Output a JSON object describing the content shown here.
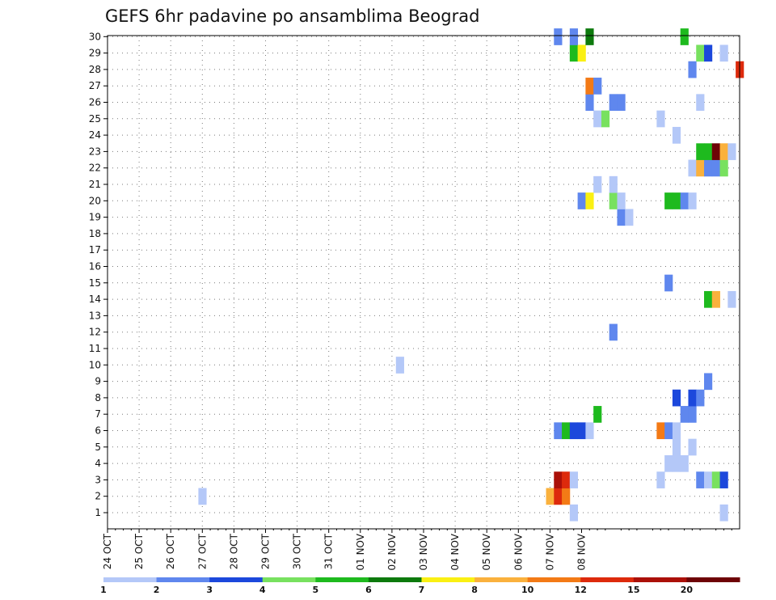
{
  "chart_data": {
    "type": "heatmap",
    "title": "GEFS 6hr padavine po ansamblima Beograd",
    "x_tick_labels": [
      "24 OCT",
      "25 OCT",
      "26 OCT",
      "27 OCT",
      "28 OCT",
      "29 OCT",
      "30 OCT",
      "31 OCT",
      "01 NOV",
      "02 NOV",
      "03 NOV",
      "04 NOV",
      "05 NOV",
      "06 NOV",
      "07 NOV",
      "08 NOV"
    ],
    "y_tick_labels": [
      "1",
      "2",
      "3",
      "4",
      "5",
      "6",
      "7",
      "8",
      "9",
      "10",
      "11",
      "12",
      "13",
      "14",
      "15",
      "16",
      "17",
      "18",
      "19",
      "20",
      "21",
      "22",
      "23",
      "24",
      "25",
      "26",
      "27",
      "28",
      "29",
      "30"
    ],
    "x_axis": "time, 6-hour steps from 24 OCT 00Z (4 steps per day)",
    "y_axis": "ensemble member",
    "ylim": [
      1,
      30
    ],
    "grid": "dotted",
    "legend": {
      "placement": "bottom",
      "boundaries": [
        "1",
        "2",
        "3",
        "4",
        "5",
        "6",
        "7",
        "8",
        "10",
        "12",
        "15",
        "20"
      ],
      "colors": [
        "#b4c8f8",
        "#5f87ee",
        "#1c48dc",
        "#78e15f",
        "#1eba1e",
        "#0d7a0d",
        "#faf013",
        "#fab13d",
        "#f37a16",
        "#dd2a0c",
        "#ab1008",
        "#6e0306"
      ]
    },
    "cells": [
      {
        "member": 1,
        "step": 59,
        "class": 0
      },
      {
        "member": 1,
        "step": 78,
        "class": 0
      },
      {
        "member": 2,
        "step": 12,
        "class": 0
      },
      {
        "member": 2,
        "step": 56,
        "class": 7
      },
      {
        "member": 2,
        "step": 57,
        "class": 9
      },
      {
        "member": 2,
        "step": 58,
        "class": 8
      },
      {
        "member": 3,
        "step": 57,
        "class": 10
      },
      {
        "member": 3,
        "step": 58,
        "class": 9
      },
      {
        "member": 3,
        "step": 59,
        "class": 0
      },
      {
        "member": 3,
        "step": 70,
        "class": 0
      },
      {
        "member": 3,
        "step": 75,
        "class": 1
      },
      {
        "member": 3,
        "step": 76,
        "class": 0
      },
      {
        "member": 3,
        "step": 77,
        "class": 3
      },
      {
        "member": 3,
        "step": 78,
        "class": 2
      },
      {
        "member": 4,
        "step": 71,
        "class": 0
      },
      {
        "member": 4,
        "step": 72,
        "class": 0
      },
      {
        "member": 4,
        "step": 73,
        "class": 0
      },
      {
        "member": 5,
        "step": 72,
        "class": 0
      },
      {
        "member": 5,
        "step": 74,
        "class": 0
      },
      {
        "member": 6,
        "step": 57,
        "class": 1
      },
      {
        "member": 6,
        "step": 58,
        "class": 4
      },
      {
        "member": 6,
        "step": 59,
        "class": 2
      },
      {
        "member": 6,
        "step": 60,
        "class": 2
      },
      {
        "member": 6,
        "step": 61,
        "class": 0
      },
      {
        "member": 6,
        "step": 70,
        "class": 8
      },
      {
        "member": 6,
        "step": 71,
        "class": 1
      },
      {
        "member": 6,
        "step": 72,
        "class": 0
      },
      {
        "member": 7,
        "step": 62,
        "class": 4
      },
      {
        "member": 7,
        "step": 73,
        "class": 1
      },
      {
        "member": 7,
        "step": 74,
        "class": 1
      },
      {
        "member": 8,
        "step": 72,
        "class": 2
      },
      {
        "member": 8,
        "step": 74,
        "class": 2
      },
      {
        "member": 8,
        "step": 75,
        "class": 1
      },
      {
        "member": 9,
        "step": 76,
        "class": 1
      },
      {
        "member": 10,
        "step": 37,
        "class": 0
      },
      {
        "member": 12,
        "step": 64,
        "class": 1
      },
      {
        "member": 14,
        "step": 76,
        "class": 4
      },
      {
        "member": 14,
        "step": 77,
        "class": 7
      },
      {
        "member": 14,
        "step": 79,
        "class": 0
      },
      {
        "member": 15,
        "step": 71,
        "class": 1
      },
      {
        "member": 19,
        "step": 65,
        "class": 1
      },
      {
        "member": 19,
        "step": 66,
        "class": 0
      },
      {
        "member": 20,
        "step": 60,
        "class": 1
      },
      {
        "member": 20,
        "step": 61,
        "class": 6
      },
      {
        "member": 20,
        "step": 64,
        "class": 3
      },
      {
        "member": 20,
        "step": 65,
        "class": 0
      },
      {
        "member": 20,
        "step": 71,
        "class": 4
      },
      {
        "member": 20,
        "step": 72,
        "class": 4
      },
      {
        "member": 20,
        "step": 73,
        "class": 1
      },
      {
        "member": 20,
        "step": 74,
        "class": 0
      },
      {
        "member": 21,
        "step": 62,
        "class": 0
      },
      {
        "member": 21,
        "step": 64,
        "class": 0
      },
      {
        "member": 22,
        "step": 74,
        "class": 0
      },
      {
        "member": 22,
        "step": 75,
        "class": 7
      },
      {
        "member": 22,
        "step": 76,
        "class": 1
      },
      {
        "member": 22,
        "step": 77,
        "class": 1
      },
      {
        "member": 22,
        "step": 78,
        "class": 3
      },
      {
        "member": 23,
        "step": 75,
        "class": 4
      },
      {
        "member": 23,
        "step": 76,
        "class": 4
      },
      {
        "member": 23,
        "step": 77,
        "class": 11
      },
      {
        "member": 23,
        "step": 78,
        "class": 7
      },
      {
        "member": 23,
        "step": 79,
        "class": 0
      },
      {
        "member": 24,
        "step": 72,
        "class": 0
      },
      {
        "member": 25,
        "step": 62,
        "class": 0
      },
      {
        "member": 25,
        "step": 63,
        "class": 3
      },
      {
        "member": 25,
        "step": 70,
        "class": 0
      },
      {
        "member": 26,
        "step": 61,
        "class": 1
      },
      {
        "member": 26,
        "step": 64,
        "class": 1
      },
      {
        "member": 26,
        "step": 65,
        "class": 1
      },
      {
        "member": 26,
        "step": 75,
        "class": 0
      },
      {
        "member": 27,
        "step": 61,
        "class": 8
      },
      {
        "member": 27,
        "step": 62,
        "class": 1
      },
      {
        "member": 28,
        "step": 74,
        "class": 1
      },
      {
        "member": 28,
        "step": 80,
        "class": 9
      },
      {
        "member": 29,
        "step": 59,
        "class": 4
      },
      {
        "member": 29,
        "step": 60,
        "class": 6
      },
      {
        "member": 29,
        "step": 75,
        "class": 3
      },
      {
        "member": 29,
        "step": 76,
        "class": 2
      },
      {
        "member": 29,
        "step": 78,
        "class": 0
      },
      {
        "member": 30,
        "step": 57,
        "class": 1
      },
      {
        "member": 30,
        "step": 59,
        "class": 1
      },
      {
        "member": 30,
        "step": 61,
        "class": 5
      },
      {
        "member": 30,
        "step": 73,
        "class": 4
      }
    ]
  }
}
